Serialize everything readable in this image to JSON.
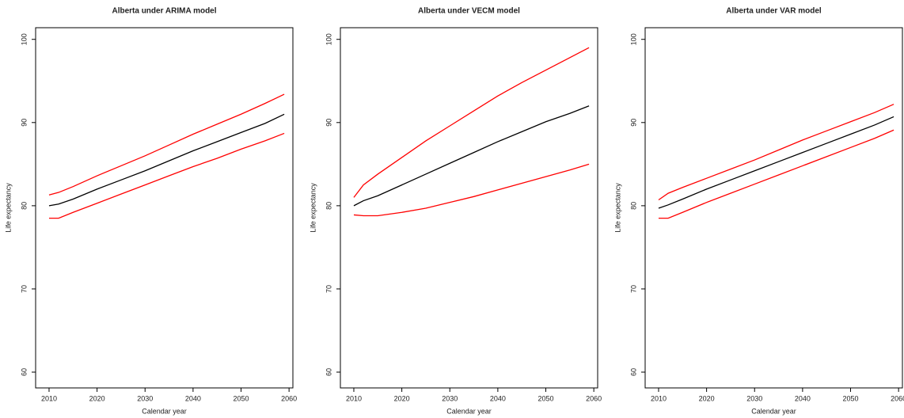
{
  "chart_data": [
    {
      "type": "line",
      "title": "Alberta under ARIMA model",
      "x_label": "Calendar year",
      "y_label": "Life expectancy",
      "x": [
        2010,
        2012,
        2015,
        2020,
        2025,
        2030,
        2035,
        2040,
        2045,
        2050,
        2055,
        2059
      ],
      "series": [
        {
          "color": "#000000",
          "values": [
            80.0,
            80.2,
            80.8,
            82.0,
            83.1,
            84.2,
            85.4,
            86.6,
            87.7,
            88.8,
            89.9,
            91.0
          ]
        },
        {
          "color": "#ff0000",
          "values": [
            81.3,
            81.6,
            82.3,
            83.6,
            84.8,
            86.0,
            87.3,
            88.6,
            89.8,
            91.0,
            92.3,
            93.4
          ]
        },
        {
          "color": "#ff0000",
          "values": [
            78.5,
            78.5,
            79.2,
            80.3,
            81.4,
            82.5,
            83.6,
            84.7,
            85.7,
            86.8,
            87.8,
            88.7
          ]
        }
      ],
      "xlim": [
        2007.2,
        2060.8
      ],
      "xticks": [
        2010,
        2020,
        2030,
        2040,
        2050,
        2060
      ],
      "ylim": [
        58.1,
        101.4
      ],
      "yticks": [
        60,
        70,
        80,
        90,
        100
      ]
    },
    {
      "type": "line",
      "title": "Alberta under VECM model",
      "x_label": "Calendar year",
      "y_label": "Life expectancy",
      "x": [
        2010,
        2012,
        2015,
        2020,
        2025,
        2030,
        2035,
        2040,
        2045,
        2050,
        2055,
        2059
      ],
      "series": [
        {
          "color": "#000000",
          "values": [
            80.0,
            80.6,
            81.2,
            82.5,
            83.8,
            85.1,
            86.4,
            87.7,
            88.9,
            90.1,
            91.1,
            92.0
          ]
        },
        {
          "color": "#ff0000",
          "values": [
            81.0,
            82.5,
            83.8,
            85.8,
            87.8,
            89.6,
            91.4,
            93.2,
            94.8,
            96.3,
            97.8,
            99.0
          ]
        },
        {
          "color": "#ff0000",
          "values": [
            78.9,
            78.8,
            78.8,
            79.2,
            79.7,
            80.4,
            81.1,
            81.9,
            82.7,
            83.5,
            84.3,
            85.0
          ]
        }
      ],
      "xlim": [
        2007.2,
        2060.8
      ],
      "xticks": [
        2010,
        2020,
        2030,
        2040,
        2050,
        2060
      ],
      "ylim": [
        58.1,
        101.4
      ],
      "yticks": [
        60,
        70,
        80,
        90,
        100
      ]
    },
    {
      "type": "line",
      "title": "Alberta under VAR model",
      "x_label": "Calendar year",
      "y_label": "Life expectancy",
      "x": [
        2010,
        2012,
        2015,
        2020,
        2025,
        2030,
        2035,
        2040,
        2045,
        2050,
        2055,
        2059
      ],
      "series": [
        {
          "color": "#000000",
          "values": [
            79.7,
            80.1,
            80.8,
            82.0,
            83.1,
            84.2,
            85.3,
            86.4,
            87.5,
            88.6,
            89.7,
            90.7
          ]
        },
        {
          "color": "#ff0000",
          "values": [
            80.7,
            81.5,
            82.2,
            83.3,
            84.4,
            85.5,
            86.7,
            87.9,
            89.0,
            90.1,
            91.2,
            92.2
          ]
        },
        {
          "color": "#ff0000",
          "values": [
            78.5,
            78.5,
            79.2,
            80.4,
            81.5,
            82.6,
            83.7,
            84.8,
            85.9,
            87.0,
            88.1,
            89.1
          ]
        }
      ],
      "xlim": [
        2007.2,
        2060.8
      ],
      "xticks": [
        2010,
        2020,
        2030,
        2040,
        2050,
        2060
      ],
      "ylim": [
        58.1,
        101.4
      ],
      "yticks": [
        60,
        70,
        80,
        90,
        100
      ]
    }
  ]
}
